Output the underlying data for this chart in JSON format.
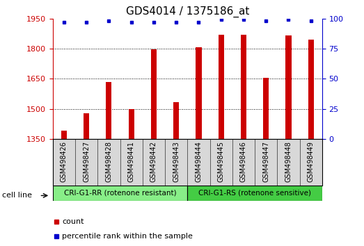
{
  "title": "GDS4014 / 1375186_at",
  "samples": [
    "GSM498426",
    "GSM498427",
    "GSM498428",
    "GSM498441",
    "GSM498442",
    "GSM498443",
    "GSM498444",
    "GSM498445",
    "GSM498446",
    "GSM498447",
    "GSM498448",
    "GSM498449"
  ],
  "counts": [
    1390,
    1478,
    1635,
    1500,
    1795,
    1535,
    1805,
    1870,
    1870,
    1655,
    1865,
    1845
  ],
  "percentile_ranks": [
    97,
    97,
    98,
    97,
    97,
    97,
    97,
    99,
    99,
    98,
    99,
    98
  ],
  "ylim_left": [
    1350,
    1950
  ],
  "ylim_right": [
    0,
    100
  ],
  "yticks_left": [
    1350,
    1500,
    1650,
    1800,
    1950
  ],
  "yticks_right": [
    0,
    25,
    50,
    75,
    100
  ],
  "grid_values": [
    1800,
    1650,
    1500
  ],
  "bar_color": "#cc0000",
  "dot_color": "#0000cc",
  "group1_label": "CRI-G1-RR (rotenone resistant)",
  "group2_label": "CRI-G1-RS (rotenone sensitive)",
  "group1_color": "#88ee88",
  "group2_color": "#44cc44",
  "group1_count": 6,
  "group2_count": 6,
  "cell_line_label": "cell line",
  "legend_count_label": "count",
  "legend_percentile_label": "percentile rank within the sample",
  "title_fontsize": 11,
  "tick_fontsize": 8,
  "label_fontsize": 7,
  "bar_width": 0.25
}
